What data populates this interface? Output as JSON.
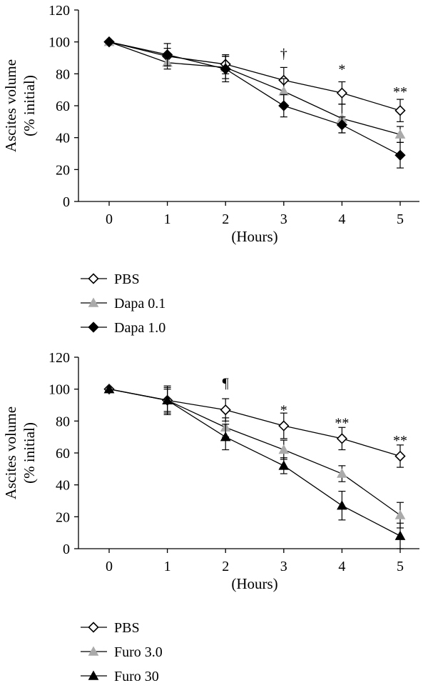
{
  "chart_data": [
    {
      "type": "line",
      "title": "",
      "xlabel": "(Hours)",
      "ylabel_line1": "Ascites volume",
      "ylabel_line2": "(% initial)",
      "x": [
        0,
        1,
        2,
        3,
        4,
        5
      ],
      "xticks": [
        "0",
        "1",
        "2",
        "3",
        "4",
        "5"
      ],
      "yticks": [
        "0",
        "20",
        "40",
        "60",
        "80",
        "100",
        "120"
      ],
      "ylim": [
        0,
        120
      ],
      "legend_position": "bottom-left",
      "series": [
        {
          "name": "PBS",
          "marker": "diamond-open",
          "color": "#000000",
          "values": [
            100,
            91,
            86,
            76,
            68,
            57
          ],
          "errors": [
            0,
            5,
            6,
            8,
            7,
            7
          ]
        },
        {
          "name": "Dapa 0.1",
          "marker": "triangle",
          "color": "#aaaaaa",
          "values": [
            100,
            87,
            84,
            69,
            52,
            42
          ],
          "errors": [
            0,
            4,
            7,
            8,
            9,
            5
          ]
        },
        {
          "name": "Dapa 1.0",
          "marker": "diamond",
          "color": "#000000",
          "values": [
            100,
            92,
            83,
            60,
            48,
            29
          ],
          "errors": [
            0,
            7,
            8,
            7,
            5,
            8
          ]
        }
      ],
      "annotations": [
        {
          "x": 3,
          "y": 93,
          "text": "†"
        },
        {
          "x": 4,
          "y": 83,
          "text": "*"
        },
        {
          "x": 5,
          "y": 69,
          "text": "**"
        }
      ]
    },
    {
      "type": "line",
      "title": "",
      "xlabel": "(Hours)",
      "ylabel_line1": "Ascites volume",
      "ylabel_line2": "(% initial)",
      "x": [
        0,
        1,
        2,
        3,
        4,
        5
      ],
      "xticks": [
        "0",
        "1",
        "2",
        "3",
        "4",
        "5"
      ],
      "yticks": [
        "0",
        "20",
        "40",
        "60",
        "80",
        "100",
        "120"
      ],
      "ylim": [
        0,
        120
      ],
      "legend_position": "bottom-left",
      "series": [
        {
          "name": "PBS",
          "marker": "diamond-open",
          "color": "#000000",
          "values": [
            100,
            93,
            87,
            77,
            69,
            58
          ],
          "errors": [
            0,
            9,
            7,
            8,
            7,
            7
          ]
        },
        {
          "name": "Furo 3.0",
          "marker": "triangle",
          "color": "#aaaaaa",
          "values": [
            100,
            93,
            76,
            62,
            47,
            21
          ],
          "errors": [
            0,
            8,
            6,
            6,
            5,
            8
          ]
        },
        {
          "name": "Furo 30",
          "marker": "triangle",
          "color": "#000000",
          "values": [
            100,
            93,
            70,
            52,
            27,
            8
          ],
          "errors": [
            0,
            7,
            8,
            5,
            9,
            8
          ]
        }
      ],
      "annotations": [
        {
          "x": 2,
          "y": 104,
          "text": "¶"
        },
        {
          "x": 3,
          "y": 87,
          "text": "*"
        },
        {
          "x": 4,
          "y": 79,
          "text": "**"
        },
        {
          "x": 5,
          "y": 68,
          "text": "**"
        }
      ]
    }
  ]
}
